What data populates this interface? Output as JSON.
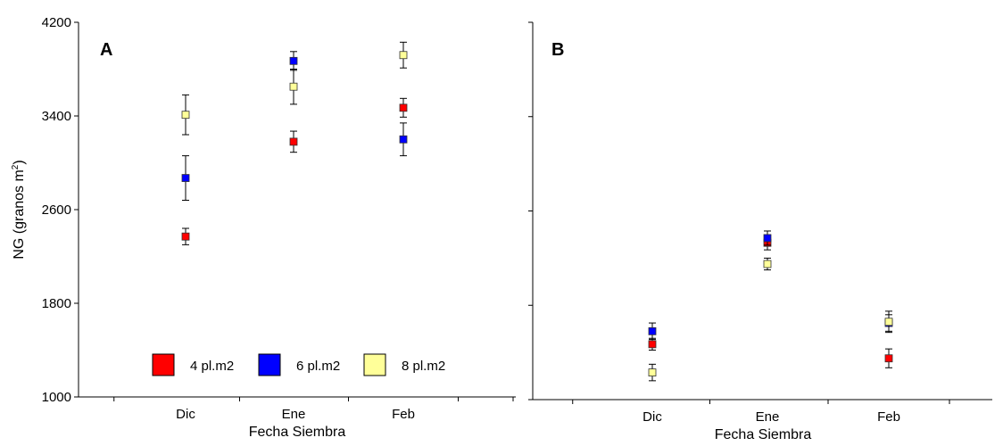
{
  "chart_data": [
    {
      "type": "scatter",
      "panel_label": "A",
      "title": "",
      "xlabel": "Fecha Siembra",
      "ylabel": "NG (granos m",
      "ylabel_sup": "2",
      "ylabel_close": ")",
      "ylim": [
        1000,
        4200
      ],
      "yticks": [
        "1000",
        "1800",
        "2600",
        "3400",
        "4200"
      ],
      "categories": [
        "Dic",
        "Ene",
        "Feb"
      ],
      "grid": false,
      "legend_position": "bottom-center",
      "series": [
        {
          "name": "4 pl.m2",
          "color": "#ff0000",
          "values": [
            2370,
            3180,
            3470
          ],
          "errors": [
            70,
            90,
            80
          ]
        },
        {
          "name": "6 pl.m2",
          "color": "#0000ff",
          "values": [
            2870,
            3870,
            3200
          ],
          "errors": [
            190,
            80,
            140
          ]
        },
        {
          "name": "8 pl.m2",
          "color": "#ffff99",
          "values": [
            3410,
            3650,
            3920
          ],
          "errors": [
            170,
            150,
            110
          ]
        }
      ]
    },
    {
      "type": "scatter",
      "panel_label": "B",
      "title": "",
      "xlabel": "Fecha Siembra",
      "ylabel": "",
      "ylim": [
        1000,
        4200
      ],
      "yticks": [],
      "categories": [
        "Dic",
        "Ene",
        "Feb"
      ],
      "grid": false,
      "series": [
        {
          "name": "4 pl.m2",
          "color": "#ff0000",
          "values": [
            1470,
            2330,
            1350
          ],
          "errors": [
            50,
            60,
            80
          ]
        },
        {
          "name": "6 pl.m2",
          "color": "#0000ff",
          "values": [
            1580,
            2370,
            1650
          ],
          "errors": [
            70,
            60,
            70
          ]
        },
        {
          "name": "8 pl.m2",
          "color": "#ffff99",
          "values": [
            1230,
            2150,
            1660
          ],
          "errors": [
            70,
            50,
            90
          ]
        }
      ]
    }
  ]
}
